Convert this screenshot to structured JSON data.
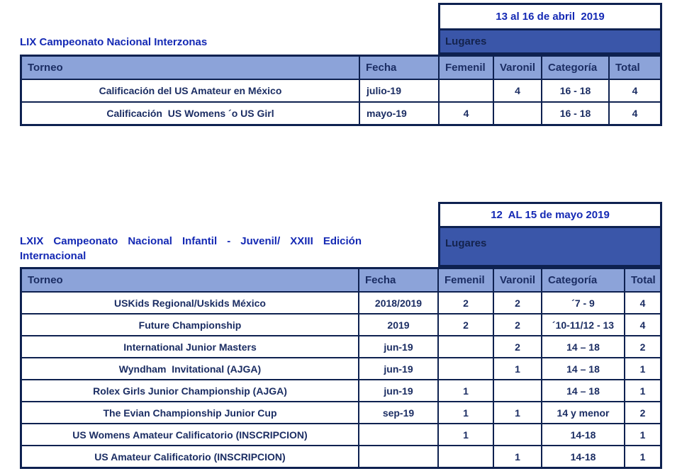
{
  "colors": {
    "accent_blue": "#1429b4",
    "navy_text": "#1b2d63",
    "header_bg": "#8ca3d9",
    "lugares_band_bg": "#3a56a9",
    "border": "#0e2150",
    "background": "#ffffff"
  },
  "table1": {
    "date_range": "13 al 16 de abril  2019",
    "title": "LIX Campeonato Nacional Interzonas",
    "lugares_label": "Lugares",
    "headers": {
      "torneo": "Torneo",
      "fecha": "Fecha",
      "femenil": "Femenil",
      "varonil": "Varonil",
      "categoria": "Categoría",
      "total": "Total"
    },
    "rows": [
      {
        "torneo": "Calificación del US Amateur en México",
        "fecha": "julio-19",
        "femenil": "",
        "varonil": "4",
        "categoria": "16 - 18",
        "total": "4"
      },
      {
        "torneo": "Calificación  US Womens ´o US Girl",
        "fecha": "mayo-19",
        "femenil": "4",
        "varonil": "",
        "categoria": "16 - 18",
        "total": "4"
      }
    ]
  },
  "table2": {
    "date_range": "12  AL 15 de mayo 2019",
    "title": "LXIX Campeonato Nacional Infantil - Juvenil/ XXIII Edición Internacional",
    "lugares_label": "Lugares",
    "headers": {
      "torneo": "Torneo",
      "fecha": "Fecha",
      "femenil": "Femenil",
      "varonil": "Varonil",
      "categoria": "Categoría",
      "total": "Total"
    },
    "rows": [
      {
        "torneo": "USKids Regional/Uskids México",
        "fecha": "2018/2019",
        "femenil": "2",
        "varonil": "2",
        "categoria": "´7 - 9",
        "total": "4"
      },
      {
        "torneo": "Future Championship",
        "fecha": "2019",
        "femenil": "2",
        "varonil": "2",
        "categoria": "´10-11/12 - 13",
        "total": "4"
      },
      {
        "torneo": "International Junior Masters",
        "fecha": "jun-19",
        "femenil": "",
        "varonil": "2",
        "categoria": "14 – 18",
        "total": "2"
      },
      {
        "torneo": "Wyndham  Invitational (AJGA)",
        "fecha": "jun-19",
        "femenil": "",
        "varonil": "1",
        "categoria": "14 – 18",
        "total": "1"
      },
      {
        "torneo": "Rolex Girls Junior Championship (AJGA)",
        "fecha": "jun-19",
        "femenil": "1",
        "varonil": "",
        "categoria": "14 – 18",
        "total": "1"
      },
      {
        "torneo": "The Evian Championship Junior Cup",
        "fecha": "sep-19",
        "femenil": "1",
        "varonil": "1",
        "categoria": "14 y menor",
        "total": "2"
      },
      {
        "torneo": "US Womens Amateur Calificatorio (INSCRIPCION)",
        "fecha": "",
        "femenil": "1",
        "varonil": "",
        "categoria": "14-18",
        "total": "1"
      },
      {
        "torneo": "US Amateur Calificatorio (INSCRIPCION)",
        "fecha": "",
        "femenil": "",
        "varonil": "1",
        "categoria": "14-18",
        "total": "1"
      }
    ]
  }
}
